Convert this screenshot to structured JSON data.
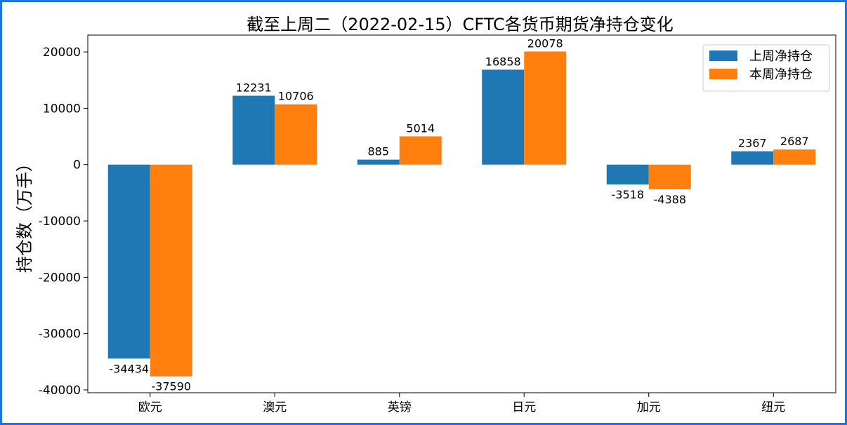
{
  "chart_data": {
    "type": "bar",
    "title": "截至上周二（2022-02-15）CFTC各货币期货净持仓变化",
    "xlabel": "",
    "ylabel": "持仓数（万手）",
    "categories": [
      "欧元",
      "澳元",
      "英镑",
      "日元",
      "加元",
      "纽元"
    ],
    "series": [
      {
        "name": "上周净持仓",
        "values": [
          -34434,
          12231,
          885,
          16858,
          -3518,
          2367
        ],
        "color": "#1f77b4"
      },
      {
        "name": "本周净持仓",
        "values": [
          -37590,
          10706,
          5014,
          20078,
          -4388,
          2687
        ],
        "color": "#ff7f0e"
      }
    ],
    "ylim": [
      -40500,
      23000
    ],
    "yticks": [
      -40000,
      -30000,
      -20000,
      -10000,
      0,
      10000,
      20000
    ],
    "grid": false,
    "legend_position": "top-right"
  }
}
